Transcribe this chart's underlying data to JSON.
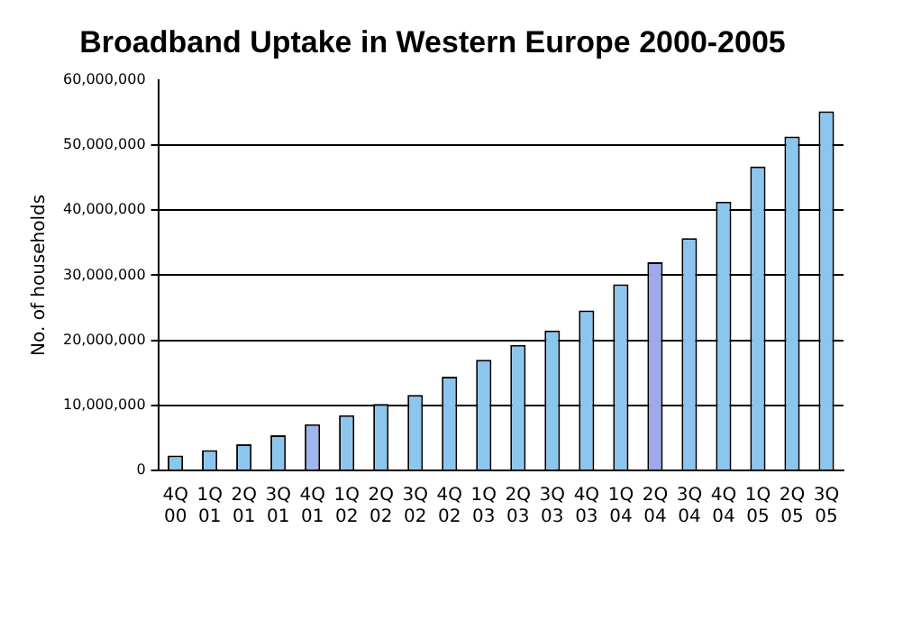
{
  "chart_data": {
    "type": "bar",
    "title": "Broadband Uptake in Western Europe 2000-2005",
    "ylabel": "No. of households",
    "categories": [
      "4Q 00",
      "1Q 01",
      "2Q 01",
      "3Q 01",
      "4Q 01",
      "1Q 02",
      "2Q 02",
      "3Q 02",
      "4Q 02",
      "1Q 03",
      "2Q 03",
      "3Q 03",
      "4Q 03",
      "1Q 04",
      "2Q 04",
      "3Q 04",
      "4Q 04",
      "1Q 05",
      "2Q 05",
      "3Q 05"
    ],
    "values": [
      2300000,
      3100000,
      4000000,
      5400000,
      7100000,
      8500000,
      10200000,
      11600000,
      14400000,
      17000000,
      19300000,
      21500000,
      24600000,
      28600000,
      32000000,
      35700000,
      41300000,
      46700000,
      51300000,
      55200000
    ],
    "colors": [
      "#8cc6ee",
      "#8cc6ee",
      "#8cc6ee",
      "#8cc6ee",
      "#9fb6ee",
      "#8cc6ee",
      "#8cc6ee",
      "#8cc6ee",
      "#8cc6ee",
      "#8cc6ee",
      "#8cc6ee",
      "#8cc6ee",
      "#8cc6ee",
      "#8cc6ee",
      "#a0a8ea",
      "#8cc6ee",
      "#8cc6ee",
      "#8cc6ee",
      "#8cc6ee",
      "#8cc6ee"
    ],
    "ylim": [
      0,
      60000000
    ],
    "yticks": [
      {
        "value": 0,
        "label": "0"
      },
      {
        "value": 10000000,
        "label": "10,000,000"
      },
      {
        "value": 20000000,
        "label": "20,000,000"
      },
      {
        "value": 30000000,
        "label": "30,000,000"
      },
      {
        "value": 40000000,
        "label": "40,000,000"
      },
      {
        "value": 50000000,
        "label": "50,000,000"
      },
      {
        "value": 60000000,
        "label": "60,000,000"
      }
    ],
    "grid": "y",
    "legend": false
  }
}
